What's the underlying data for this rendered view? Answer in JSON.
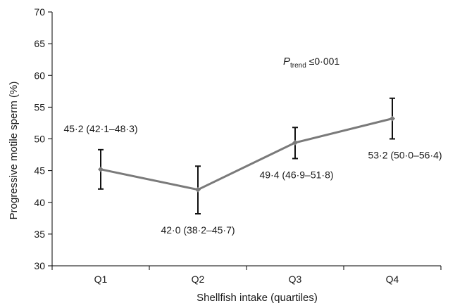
{
  "chart_data": {
    "type": "line",
    "xlabel": "Shellfish intake (quartiles)",
    "ylabel": "Progressive motile sperm (%)",
    "ylim": [
      30,
      70
    ],
    "yticks": [
      30,
      35,
      40,
      45,
      50,
      55,
      60,
      65,
      70
    ],
    "categories": [
      "Q1",
      "Q2",
      "Q3",
      "Q4"
    ],
    "series": [
      {
        "values": [
          45.2,
          42.0,
          49.4,
          53.2
        ],
        "lower": [
          42.1,
          38.2,
          46.9,
          50.0
        ],
        "upper": [
          48.3,
          45.7,
          51.8,
          56.4
        ],
        "color": "#7a7a7a"
      }
    ],
    "data_labels": [
      "45·2 (42·1–48·3)",
      "42·0 (38·2–45·7)",
      "49·4 (46·9–51·8)",
      "53·2 (50·0–56·4)"
    ],
    "annotation": {
      "p_symbol": "P",
      "p_subscript": "trend",
      "p_value": " ≤0·001"
    },
    "grid": false,
    "legend": "none"
  }
}
